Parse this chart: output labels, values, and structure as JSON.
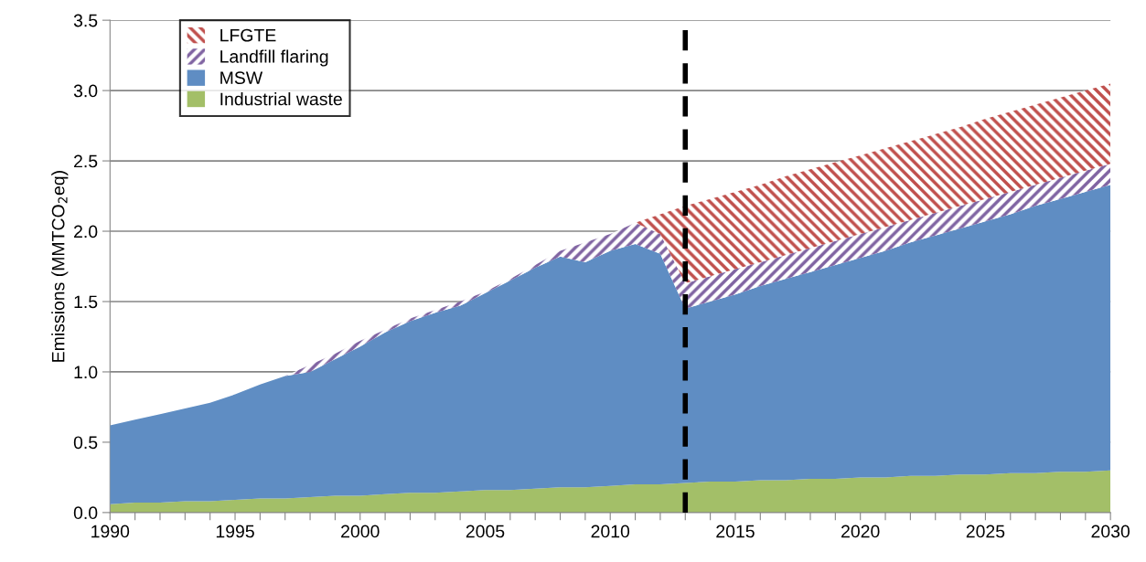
{
  "chart_data": {
    "type": "area",
    "stacked": true,
    "ylabel": "Emissions (MMTCO$_{2}$eq)",
    "x": [
      1990,
      1991,
      1992,
      1993,
      1994,
      1995,
      1996,
      1997,
      1998,
      1999,
      2000,
      2001,
      2002,
      2003,
      2004,
      2005,
      2006,
      2007,
      2008,
      2009,
      2010,
      2011,
      2012,
      2013,
      2014,
      2015,
      2016,
      2017,
      2018,
      2019,
      2020,
      2021,
      2022,
      2023,
      2024,
      2025,
      2026,
      2027,
      2028,
      2029,
      2030
    ],
    "series": [
      {
        "name": "Industrial waste",
        "color": "#a3bf68",
        "values": [
          0.06,
          0.07,
          0.07,
          0.08,
          0.08,
          0.09,
          0.1,
          0.1,
          0.11,
          0.12,
          0.12,
          0.13,
          0.14,
          0.14,
          0.15,
          0.16,
          0.16,
          0.17,
          0.18,
          0.18,
          0.19,
          0.2,
          0.2,
          0.21,
          0.22,
          0.22,
          0.23,
          0.23,
          0.24,
          0.24,
          0.25,
          0.25,
          0.26,
          0.26,
          0.27,
          0.27,
          0.28,
          0.28,
          0.29,
          0.29,
          0.3
        ]
      },
      {
        "name": "MSW",
        "color": "#5f8dc3",
        "values": [
          0.56,
          0.59,
          0.63,
          0.66,
          0.7,
          0.75,
          0.81,
          0.87,
          0.89,
          0.97,
          1.06,
          1.15,
          1.22,
          1.28,
          1.32,
          1.4,
          1.49,
          1.57,
          1.64,
          1.6,
          1.67,
          1.71,
          1.64,
          1.24,
          1.28,
          1.33,
          1.38,
          1.43,
          1.47,
          1.52,
          1.56,
          1.61,
          1.66,
          1.71,
          1.75,
          1.8,
          1.84,
          1.9,
          1.94,
          1.99,
          2.03
        ]
      },
      {
        "name": "Landfill flaring",
        "color": "#8064a2",
        "values": [
          0,
          0,
          0,
          0,
          0,
          0,
          0,
          0,
          0.05,
          0.04,
          0.04,
          0.02,
          0.02,
          0.02,
          0.03,
          0.01,
          0.01,
          0.02,
          0.04,
          0.14,
          0.12,
          0.15,
          0.14,
          0.18,
          0.18,
          0.18,
          0.17,
          0.17,
          0.17,
          0.17,
          0.17,
          0.17,
          0.16,
          0.16,
          0.16,
          0.16,
          0.16,
          0.15,
          0.15,
          0.15,
          0.15
        ]
      },
      {
        "name": "LFGTE",
        "color": "#c0504d",
        "values": [
          0,
          0,
          0,
          0,
          0,
          0,
          0,
          0,
          0,
          0,
          0,
          0,
          0,
          0,
          0,
          0,
          0,
          0,
          0,
          0,
          0,
          0,
          0.14,
          0.55,
          0.55,
          0.55,
          0.55,
          0.56,
          0.56,
          0.56,
          0.56,
          0.56,
          0.56,
          0.56,
          0.56,
          0.57,
          0.57,
          0.57,
          0.57,
          0.57,
          0.57
        ]
      }
    ],
    "xlim": [
      1990,
      2030
    ],
    "xticks": [
      1990,
      {
        "value": 1991,
        "label": null
      },
      {
        "value": 1992,
        "label": null
      },
      {
        "value": 1993,
        "label": null
      },
      {
        "value": 1994,
        "label": null
      },
      1995,
      {
        "value": 1996,
        "label": null
      },
      {
        "value": 1997,
        "label": null
      },
      {
        "value": 1998,
        "label": null
      },
      {
        "value": 1999,
        "label": null
      },
      2000,
      {
        "value": 2001,
        "label": null
      },
      {
        "value": 2002,
        "label": null
      },
      {
        "value": 2003,
        "label": null
      },
      {
        "value": 2004,
        "label": null
      },
      2005,
      {
        "value": 2006,
        "label": null
      },
      {
        "value": 2007,
        "label": null
      },
      {
        "value": 2008,
        "label": null
      },
      {
        "value": 2009,
        "label": null
      },
      2010,
      {
        "value": 2011,
        "label": null
      },
      {
        "value": 2012,
        "label": null
      },
      {
        "value": 2013,
        "label": null
      },
      {
        "value": 2014,
        "label": null
      },
      2015,
      {
        "value": 2016,
        "label": null
      },
      {
        "value": 2017,
        "label": null
      },
      {
        "value": 2018,
        "label": null
      },
      {
        "value": 2019,
        "label": null
      },
      2020,
      {
        "value": 2021,
        "label": null
      },
      {
        "value": 2022,
        "label": null
      },
      {
        "value": 2023,
        "label": null
      },
      {
        "value": 2024,
        "label": null
      },
      2025,
      {
        "value": 2026,
        "label": null
      },
      {
        "value": 2027,
        "label": null
      },
      {
        "value": 2028,
        "label": null
      },
      {
        "value": 2029,
        "label": null
      },
      2030
    ],
    "ylim": [
      0.0,
      3.5
    ],
    "yticks": [
      {
        "value": 0,
        "label": "0.0"
      },
      0.5,
      {
        "value": 1,
        "label": "1.0"
      },
      1.5,
      {
        "value": 2,
        "label": "2.0"
      },
      2.5,
      {
        "value": 3,
        "label": "3.0"
      },
      3.5
    ],
    "ref_lines": [
      {
        "axis": "x",
        "value": 2013,
        "color": "#000000",
        "line_style": "dashed"
      }
    ],
    "grid": "y",
    "legend": "top left"
  }
}
